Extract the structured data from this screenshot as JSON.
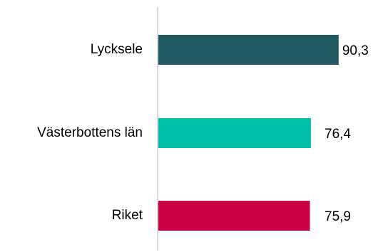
{
  "chart_data": {
    "type": "bar",
    "orientation": "horizontal",
    "categories": [
      "Lycksele",
      "Västerbottens län",
      "Riket"
    ],
    "values": [
      90.3,
      76.4,
      75.9
    ],
    "value_labels": [
      "90,3",
      "76,4",
      "75,9"
    ],
    "colors": [
      "#215a62",
      "#00bfa9",
      "#cc0044"
    ],
    "xlim": [
      0,
      100
    ],
    "grid": false,
    "legend": "none",
    "axis_color": "#cccccc"
  }
}
